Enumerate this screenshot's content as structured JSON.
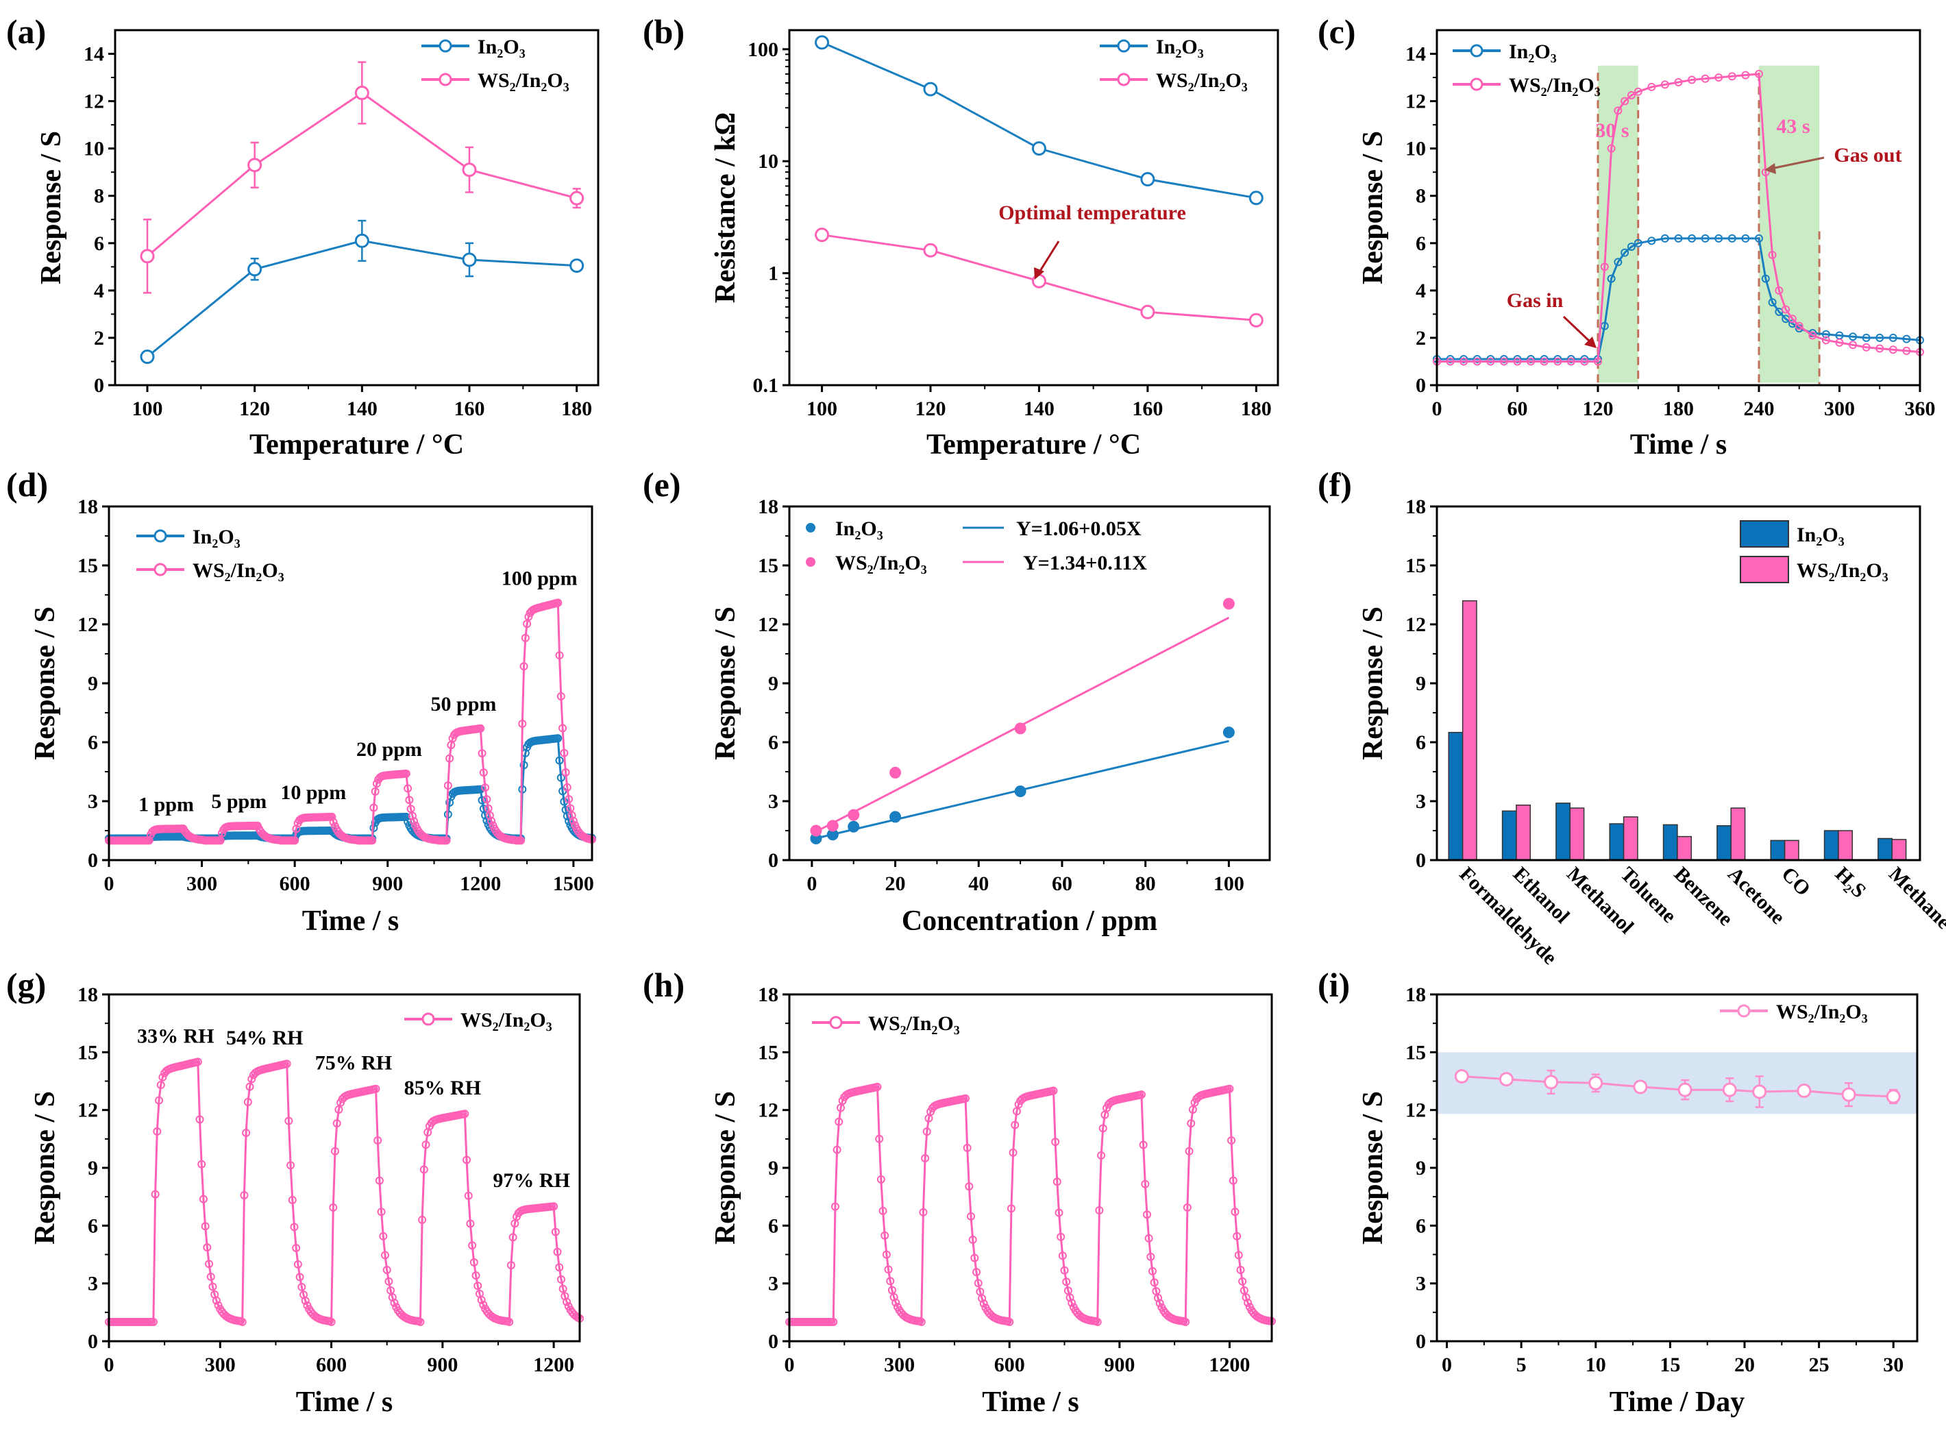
{
  "colors": {
    "in2o3": "#1a7fc1",
    "ws2": "#ff5fb4",
    "bar_in2o3": "#0a72b8",
    "bar_ws2": "#ff66b8",
    "annotation": "#b0141c",
    "green_region": "#c9ecc4",
    "band": "#d6e4f4"
  },
  "chart_data": [
    {
      "panel": "(a)",
      "type": "line",
      "xlabel": "Temperature / °C",
      "ylabel": "Response / S",
      "xlim": [
        94,
        184
      ],
      "ylim": [
        0,
        15
      ],
      "xticks": [
        100,
        120,
        140,
        160,
        180
      ],
      "yticks": [
        0,
        2,
        4,
        6,
        8,
        10,
        12,
        14
      ],
      "legend": "top-right",
      "series": [
        {
          "name": "In₂O₃",
          "color": "#1a7fc1",
          "x": [
            100,
            120,
            140,
            160,
            180
          ],
          "y": [
            1.2,
            4.9,
            6.1,
            5.3,
            5.05
          ],
          "err": [
            0.15,
            0.45,
            0.85,
            0.7,
            0.1
          ]
        },
        {
          "name": "WS₂/In₂O₃",
          "color": "#ff5fb4",
          "x": [
            100,
            120,
            140,
            160,
            180
          ],
          "y": [
            5.45,
            9.3,
            12.35,
            9.1,
            7.9
          ],
          "err": [
            1.55,
            0.95,
            1.3,
            0.95,
            0.4
          ]
        }
      ]
    },
    {
      "panel": "(b)",
      "type": "line",
      "xlabel": "Temperature / °C",
      "ylabel": "Resistance / kΩ",
      "xlim": [
        94,
        184
      ],
      "ylim": [
        0.1,
        148
      ],
      "yscale": "log",
      "xticks": [
        100,
        120,
        140,
        160,
        180
      ],
      "yticks": [
        0.1,
        1,
        10,
        100
      ],
      "ytick_labels": [
        "0.1",
        "1",
        "10",
        "100"
      ],
      "legend": "top-right",
      "annotations": [
        {
          "text": "Optimal temperature"
        }
      ],
      "series": [
        {
          "name": "In₂O₃",
          "color": "#1a7fc1",
          "x": [
            100,
            120,
            140,
            160,
            180
          ],
          "y": [
            115,
            44,
            13,
            6.9,
            4.7
          ]
        },
        {
          "name": "WS₂/In₂O₃",
          "color": "#ff5fb4",
          "x": [
            100,
            120,
            140,
            160,
            180
          ],
          "y": [
            2.2,
            1.6,
            0.85,
            0.45,
            0.38
          ]
        }
      ]
    },
    {
      "panel": "(c)",
      "type": "line",
      "xlabel": "Time / s",
      "ylabel": "Response / S",
      "xlim": [
        0,
        360
      ],
      "ylim": [
        0,
        15
      ],
      "xticks": [
        0,
        60,
        120,
        180,
        240,
        300,
        360
      ],
      "yticks": [
        0,
        2,
        4,
        6,
        8,
        10,
        12,
        14
      ],
      "legend": "top-left",
      "regions": [
        [
          120,
          150
        ],
        [
          240,
          285
        ]
      ],
      "annotations": [
        {
          "text": "30 s"
        },
        {
          "text": "43 s"
        },
        {
          "text": "Gas in"
        },
        {
          "text": "Gas out"
        }
      ],
      "series": [
        {
          "name": "In₂O₃",
          "color": "#1a7fc1",
          "x": [
            0,
            10,
            20,
            30,
            40,
            50,
            60,
            70,
            80,
            90,
            100,
            110,
            120,
            125,
            130,
            135,
            140,
            145,
            150,
            160,
            170,
            180,
            190,
            200,
            210,
            220,
            230,
            240,
            245,
            250,
            255,
            260,
            265,
            270,
            280,
            290,
            300,
            310,
            320,
            330,
            340,
            350,
            360
          ],
          "y": [
            1.1,
            1.1,
            1.1,
            1.1,
            1.1,
            1.1,
            1.1,
            1.1,
            1.1,
            1.1,
            1.1,
            1.1,
            1.1,
            2.5,
            4.5,
            5.2,
            5.6,
            5.85,
            6.0,
            6.1,
            6.2,
            6.2,
            6.2,
            6.2,
            6.2,
            6.2,
            6.2,
            6.2,
            4.5,
            3.5,
            3.1,
            2.8,
            2.6,
            2.4,
            2.2,
            2.15,
            2.1,
            2.05,
            2.0,
            2.0,
            2.0,
            1.95,
            1.9
          ]
        },
        {
          "name": "WS₂/In₂O₃",
          "color": "#ff5fb4",
          "x": [
            0,
            10,
            20,
            30,
            40,
            50,
            60,
            70,
            80,
            90,
            100,
            110,
            120,
            125,
            130,
            135,
            140,
            145,
            150,
            160,
            170,
            180,
            190,
            200,
            210,
            220,
            230,
            240,
            245,
            250,
            255,
            260,
            265,
            270,
            280,
            290,
            300,
            310,
            320,
            330,
            340,
            350,
            360
          ],
          "y": [
            1.0,
            1.0,
            1.0,
            1.0,
            1.0,
            1.0,
            1.0,
            1.0,
            1.0,
            1.0,
            1.0,
            1.0,
            1.0,
            5.0,
            10.0,
            11.6,
            12.0,
            12.25,
            12.4,
            12.6,
            12.7,
            12.8,
            12.9,
            12.95,
            13.0,
            13.05,
            13.1,
            13.15,
            9.0,
            5.5,
            4.0,
            3.2,
            2.8,
            2.5,
            2.1,
            1.9,
            1.8,
            1.7,
            1.6,
            1.55,
            1.5,
            1.45,
            1.4
          ]
        }
      ]
    },
    {
      "panel": "(d)",
      "type": "line",
      "xlabel": "Time / s",
      "ylabel": "Response / S",
      "xlim": [
        0,
        1560
      ],
      "ylim": [
        0,
        18
      ],
      "xticks": [
        0,
        300,
        600,
        900,
        1200,
        1500
      ],
      "yticks": [
        0,
        3,
        6,
        9,
        12,
        15,
        18
      ],
      "legend": "top-left",
      "series": [
        {
          "name": "In₂O₃",
          "color": "#1a7fc1",
          "baseline": 1.1,
          "pulses": [
            {
              "on": 130,
              "off": 240,
              "peak": 1.2
            },
            {
              "on": 360,
              "off": 480,
              "peak": 1.25
            },
            {
              "on": 600,
              "off": 720,
              "peak": 1.5
            },
            {
              "on": 850,
              "off": 960,
              "peak": 2.2
            },
            {
              "on": 1090,
              "off": 1200,
              "peak": 3.6
            },
            {
              "on": 1330,
              "off": 1450,
              "peak": 6.2
            }
          ]
        },
        {
          "name": "WS₂/In₂O₃",
          "color": "#ff5fb4",
          "baseline": 1.0,
          "pulses": [
            {
              "on": 130,
              "off": 240,
              "peak": 1.6,
              "label": "1 ppm"
            },
            {
              "on": 360,
              "off": 480,
              "peak": 1.75,
              "label": "5 ppm"
            },
            {
              "on": 600,
              "off": 720,
              "peak": 2.2,
              "label": "10 ppm"
            },
            {
              "on": 850,
              "off": 960,
              "peak": 4.4,
              "label": "20 ppm"
            },
            {
              "on": 1090,
              "off": 1200,
              "peak": 6.7,
              "label": "50 ppm"
            },
            {
              "on": 1330,
              "off": 1450,
              "peak": 13.1,
              "label": "100 ppm"
            }
          ]
        }
      ]
    },
    {
      "panel": "(e)",
      "type": "scatter",
      "xlabel": "Concentration / ppm",
      "ylabel": "Response / S",
      "xlim": [
        -5.4,
        109.8
      ],
      "ylim": [
        0,
        18
      ],
      "xticks": [
        0,
        20,
        40,
        60,
        80,
        100
      ],
      "yticks": [
        0,
        3,
        6,
        9,
        12,
        15,
        18
      ],
      "legend": "top-left",
      "series": [
        {
          "name": "In₂O₃",
          "color": "#1a7fc1",
          "x": [
            1,
            5,
            10,
            20,
            50,
            100
          ],
          "y": [
            1.1,
            1.3,
            1.7,
            2.2,
            3.5,
            6.5
          ],
          "fit": {
            "label": "Y=1.06+0.05X",
            "intercept": 1.06,
            "slope": 0.05
          }
        },
        {
          "name": "WS₂/In₂O₃",
          "color": "#ff5fb4",
          "x": [
            1,
            5,
            10,
            20,
            50,
            100
          ],
          "y": [
            1.5,
            1.75,
            2.3,
            4.45,
            6.7,
            13.05
          ],
          "fit": {
            "label": "Y=1.34+0.11X",
            "intercept": 1.34,
            "slope": 0.11
          }
        }
      ]
    },
    {
      "panel": "(f)",
      "type": "bar",
      "xlabel": "",
      "ylabel": "Response / S",
      "ylim": [
        0,
        18
      ],
      "yticks": [
        0,
        3,
        6,
        9,
        12,
        15,
        18
      ],
      "legend": "top-right",
      "categories": [
        "Formaldehyde",
        "Ethanol",
        "Methanol",
        "Toluene",
        "Benzene",
        "Acetone",
        "CO",
        "H₂S",
        "Methane"
      ],
      "series": [
        {
          "name": "In₂O₃",
          "color": "#0a72b8",
          "values": [
            6.5,
            2.5,
            2.9,
            1.85,
            1.8,
            1.75,
            1.0,
            1.5,
            1.1
          ]
        },
        {
          "name": "WS₂/In₂O₃",
          "color": "#ff66b8",
          "values": [
            13.2,
            2.8,
            2.65,
            2.2,
            1.2,
            2.65,
            1.0,
            1.5,
            1.05
          ]
        }
      ]
    },
    {
      "panel": "(g)",
      "type": "line",
      "xlabel": "Time / s",
      "ylabel": "Response / S",
      "xlim": [
        0,
        1270
      ],
      "ylim": [
        0,
        18
      ],
      "xticks": [
        0,
        300,
        600,
        900,
        1200
      ],
      "yticks": [
        0,
        3,
        6,
        9,
        12,
        15,
        18
      ],
      "legend": "top-right",
      "series": [
        {
          "name": "WS₂/In₂O₃",
          "color": "#ff5fb4",
          "baseline": 1.0,
          "pulses": [
            {
              "on": 120,
              "off": 240,
              "peak": 14.5,
              "label": "33% RH"
            },
            {
              "on": 360,
              "off": 480,
              "peak": 14.4,
              "label": "54% RH"
            },
            {
              "on": 600,
              "off": 720,
              "peak": 13.1,
              "label": "75% RH"
            },
            {
              "on": 840,
              "off": 960,
              "peak": 11.8,
              "label": "85% RH"
            },
            {
              "on": 1080,
              "off": 1200,
              "peak": 7.0,
              "label": "97% RH"
            }
          ]
        }
      ]
    },
    {
      "panel": "(h)",
      "type": "line",
      "xlabel": "Time / s",
      "ylabel": "Response / S",
      "xlim": [
        0,
        1315
      ],
      "ylim": [
        0,
        18
      ],
      "xticks": [
        0,
        300,
        600,
        900,
        1200
      ],
      "yticks": [
        0,
        3,
        6,
        9,
        12,
        15,
        18
      ],
      "legend": "top-left",
      "series": [
        {
          "name": "WS₂/In₂O₃",
          "color": "#ff5fb4",
          "baseline": 1.0,
          "pulses": [
            {
              "on": 120,
              "off": 240,
              "peak": 13.2
            },
            {
              "on": 360,
              "off": 480,
              "peak": 12.6
            },
            {
              "on": 600,
              "off": 720,
              "peak": 13.0
            },
            {
              "on": 840,
              "off": 960,
              "peak": 12.8
            },
            {
              "on": 1080,
              "off": 1200,
              "peak": 13.1
            }
          ]
        }
      ]
    },
    {
      "panel": "(i)",
      "type": "line",
      "xlabel": "Time / Day",
      "ylabel": "Response / S",
      "xlim": [
        -0.67,
        31.6
      ],
      "ylim": [
        0,
        18
      ],
      "xticks": [
        0,
        5,
        10,
        15,
        20,
        25,
        30
      ],
      "yticks": [
        0,
        3,
        6,
        9,
        12,
        15,
        18
      ],
      "legend": "top-right",
      "band": [
        11.8,
        15.0
      ],
      "series": [
        {
          "name": "WS₂/In₂O₃",
          "color": "#ff8ccb",
          "x": [
            1,
            4,
            7,
            10,
            13,
            16,
            19,
            21,
            24,
            27,
            30
          ],
          "y": [
            13.75,
            13.6,
            13.45,
            13.4,
            13.2,
            13.05,
            13.05,
            12.95,
            13.0,
            12.8,
            12.7
          ],
          "err": [
            0.25,
            0.15,
            0.6,
            0.45,
            0.1,
            0.5,
            0.6,
            0.8,
            0.25,
            0.6,
            0.35
          ]
        }
      ]
    }
  ]
}
